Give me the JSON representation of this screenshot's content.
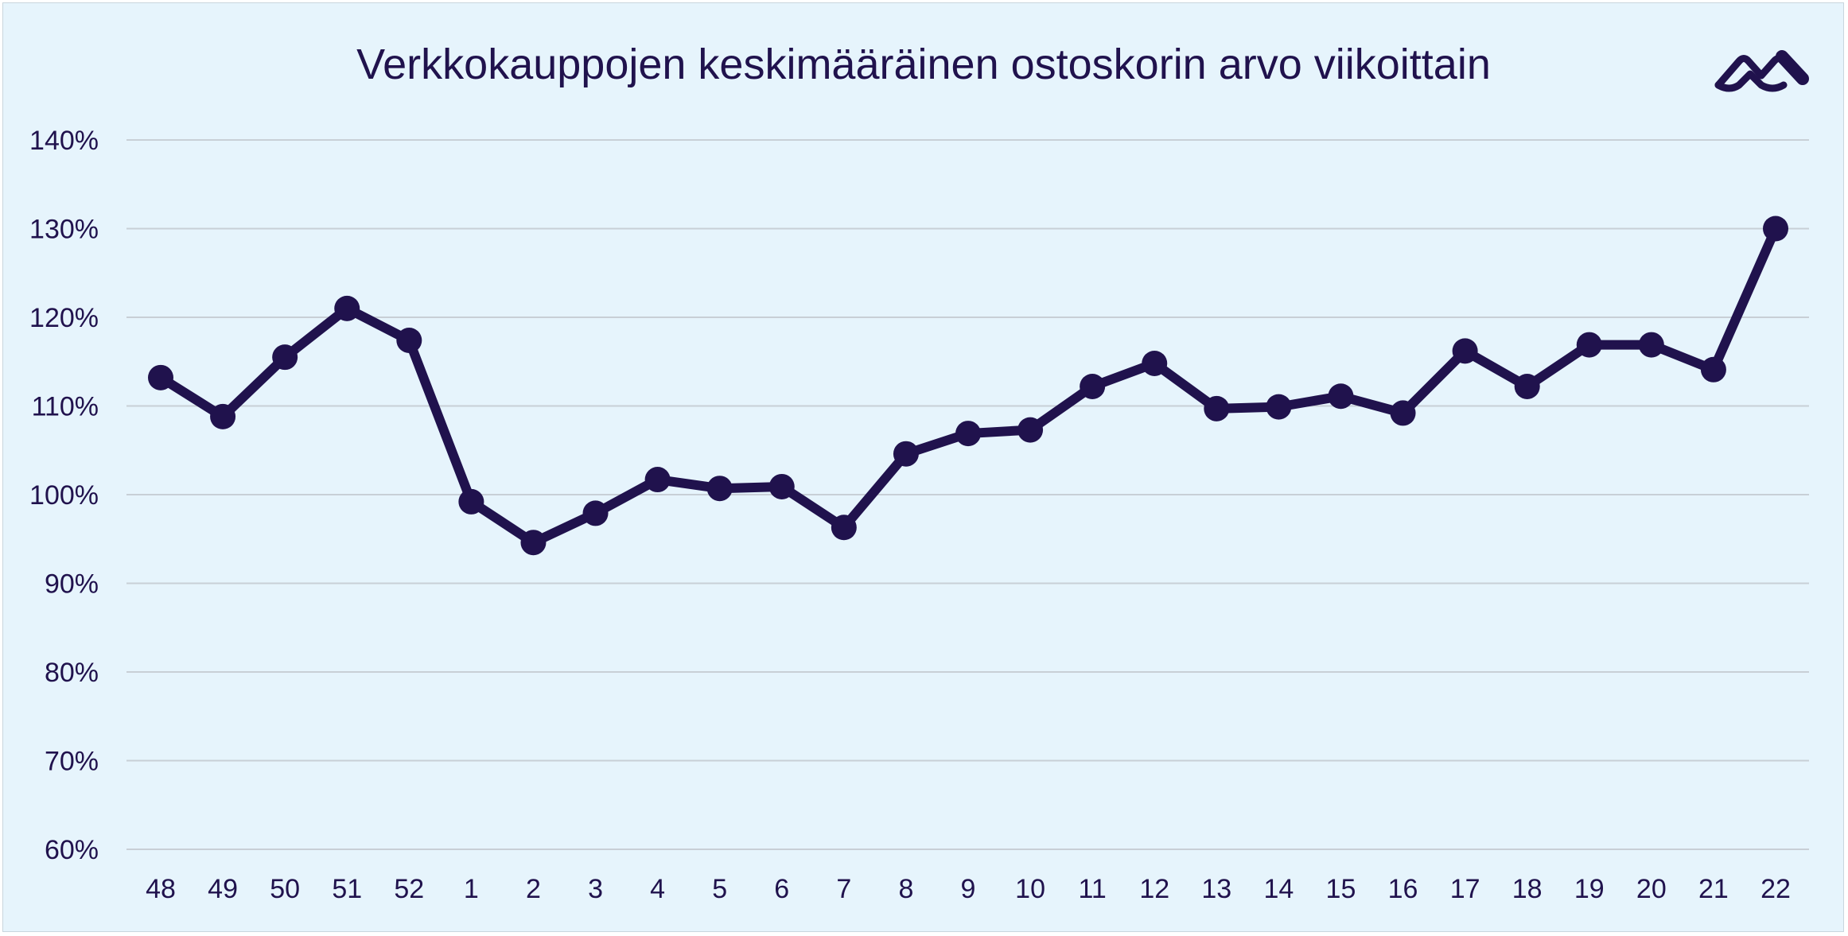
{
  "colors": {
    "background": "#e6f4fc",
    "series": "#20124d",
    "text": "#20124d",
    "grid": "#c8cfd6"
  },
  "logo": {
    "icon": "brand-logo-icon"
  },
  "chart_data": {
    "type": "line",
    "title": "Verkkokauppojen keskimääräinen ostoskorin arvo viikoittain",
    "xlabel": "",
    "ylabel": "",
    "categories": [
      "48",
      "49",
      "50",
      "51",
      "52",
      "1",
      "2",
      "3",
      "4",
      "5",
      "6",
      "7",
      "8",
      "9",
      "10",
      "11",
      "12",
      "13",
      "14",
      "15",
      "16",
      "17",
      "18",
      "19",
      "20",
      "21",
      "22"
    ],
    "series": [
      {
        "values": [
          113.2,
          108.8,
          115.5,
          121.0,
          117.4,
          99.2,
          94.6,
          97.9,
          101.7,
          100.7,
          100.9,
          96.3,
          104.6,
          106.9,
          107.3,
          112.2,
          114.8,
          109.7,
          109.9,
          111.1,
          109.2,
          116.2,
          112.2,
          116.9,
          116.9,
          114.1,
          130.0
        ]
      }
    ],
    "ylim": [
      60,
      140
    ],
    "yticks": [
      140,
      130,
      120,
      110,
      100,
      90,
      80,
      70,
      60
    ],
    "ytick_labels": [
      "140%",
      "130%",
      "120%",
      "110%",
      "100%",
      "90%",
      "80%",
      "70%",
      "60%"
    ],
    "grid": true,
    "legend": "none"
  }
}
